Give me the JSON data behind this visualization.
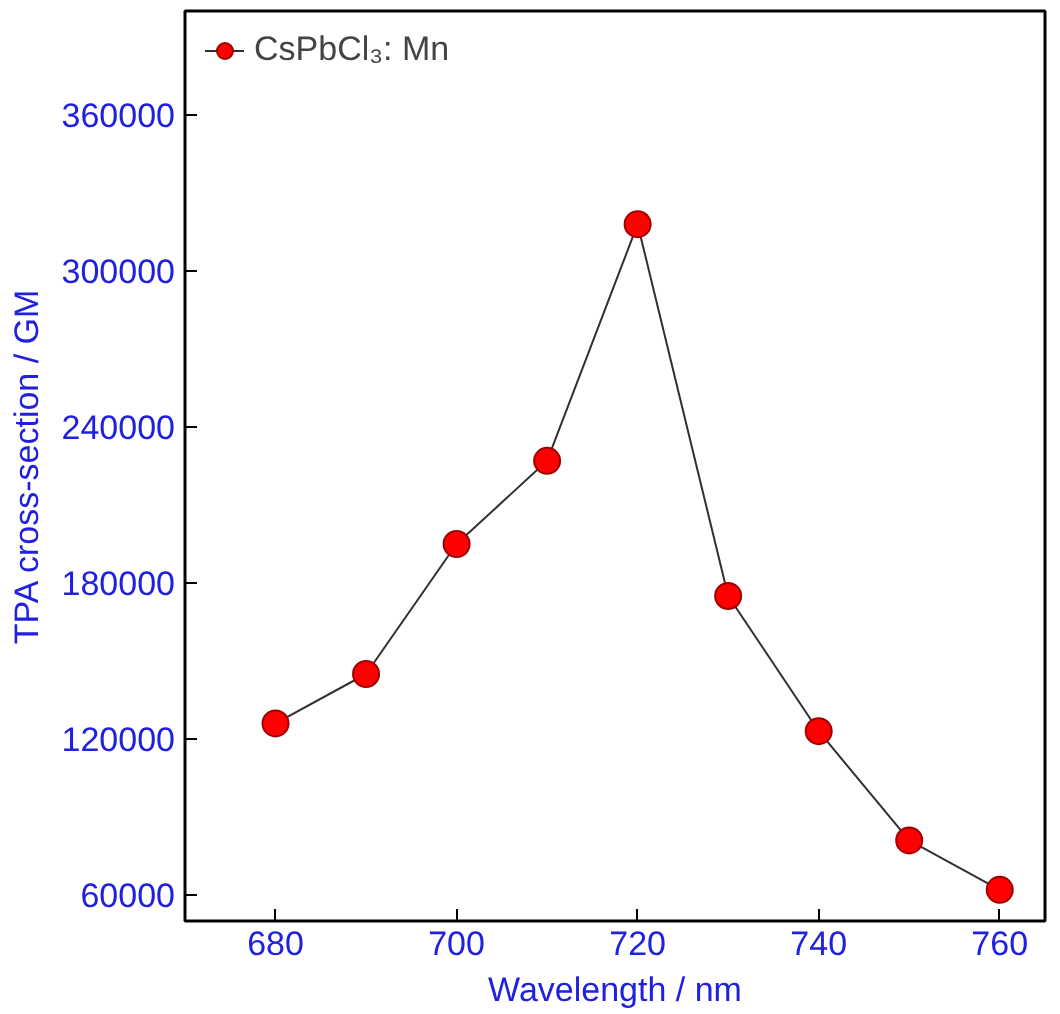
{
  "chart_data": {
    "type": "line",
    "xlabel": "Wavelength / nm",
    "ylabel": "TPA cross-section / GM",
    "x": [
      680,
      690,
      700,
      710,
      720,
      730,
      740,
      750,
      760
    ],
    "series": [
      {
        "name": "CsPbCl₃: Mn",
        "color": "#ff0000",
        "values": [
          126000,
          145000,
          195000,
          227000,
          318000,
          175000,
          123000,
          81000,
          62000
        ]
      }
    ],
    "xlim": [
      670,
      765
    ],
    "ylim": [
      50000,
      400000
    ],
    "xticks": [
      680,
      700,
      720,
      740,
      760
    ],
    "yticks": [
      60000,
      120000,
      180000,
      240000,
      300000,
      360000
    ],
    "marker": "circle",
    "line_style": "solid",
    "legend": "top left",
    "grid": false
  }
}
